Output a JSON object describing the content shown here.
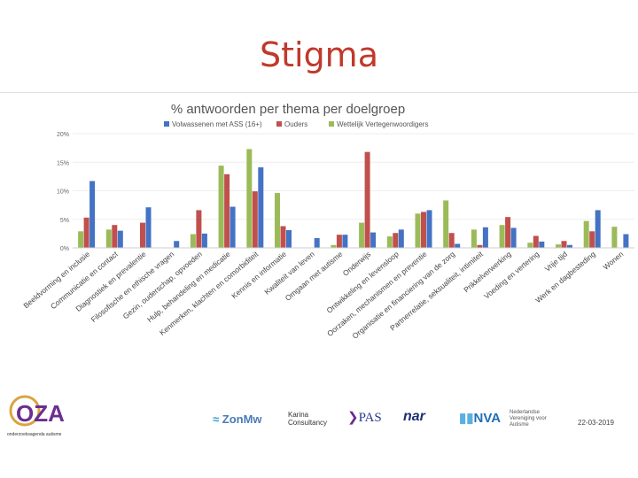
{
  "slide": {
    "title": "Stigma",
    "date": "22-03-2019"
  },
  "footer": {
    "oza_logo": "OZA",
    "oza_sub": "onderzoeksagenda autisme",
    "zonmw": "ZonMw",
    "karina": "Karina",
    "karina_sub": "Consultancy",
    "pas": "PAS",
    "nar": "nar",
    "nva": "NVA",
    "nva_sub": "Nederlandse Vereniging voor Autisme"
  },
  "colors": {
    "title": "#c0392b",
    "blue": "#4472c4",
    "red": "#c0504d",
    "green": "#9bbb59"
  },
  "chart_data": {
    "type": "bar",
    "title": "% antwoorden per thema per doelgroep",
    "ylim": [
      0,
      20
    ],
    "yticks": [
      "0%",
      "5%",
      "10%",
      "15%",
      "20%"
    ],
    "categories": [
      "Beeldvorming en inclusie",
      "Communicatie en contact",
      "Diagnostiek en prevalentie",
      "Filosofische en ethische vragen",
      "Gezin, ouderschap, opvoeden",
      "Hulp, behandeling en medicatie",
      "Kenmerken, klachten en comorbiditeit",
      "Kennis en informatie",
      "Kwaliteit van leven",
      "Omgaan met autisme",
      "Onderwijs",
      "Ontwikkeling en levensloop",
      "Oorzaken, mechanismen en preventie",
      "Organisatie en financiering van de zorg",
      "Partnerrelatie, seksualiteit, intimiteit",
      "Prikkelverwerking",
      "Voeding en vertering",
      "Vrije tijd",
      "Werk en dagbesteding",
      "Wonen"
    ],
    "series": [
      {
        "name": "Wettelijk Vertegenwoordigers",
        "color": "#9bbb59",
        "values": [
          2.9,
          3.2,
          0,
          0,
          2.4,
          14.4,
          17.3,
          9.6,
          0,
          0.5,
          4.4,
          2.0,
          6.0,
          8.3,
          3.2,
          4.0,
          0.9,
          0.6,
          4.7,
          3.7
        ]
      },
      {
        "name": "Ouders",
        "color": "#c0504d",
        "values": [
          5.3,
          4.0,
          4.4,
          0,
          6.6,
          12.9,
          9.9,
          3.8,
          0,
          2.3,
          16.8,
          2.6,
          6.3,
          2.6,
          0.5,
          5.4,
          2.1,
          1.2,
          2.9,
          0
        ]
      },
      {
        "name": "Volwassenen met ASS (16+)",
        "color": "#4472c4",
        "values": [
          11.7,
          3.0,
          7.1,
          1.2,
          2.5,
          7.2,
          14.1,
          3.1,
          1.7,
          2.3,
          2.7,
          3.2,
          6.6,
          0.7,
          3.6,
          3.5,
          1.1,
          0.5,
          6.6,
          2.4
        ]
      }
    ],
    "legend": [
      {
        "label": "Volwassenen met ASS (16+)",
        "color": "#4472c4"
      },
      {
        "label": "Ouders",
        "color": "#c0504d"
      },
      {
        "label": "Wettelijk Vertegenwoordigers",
        "color": "#9bbb59"
      }
    ]
  }
}
